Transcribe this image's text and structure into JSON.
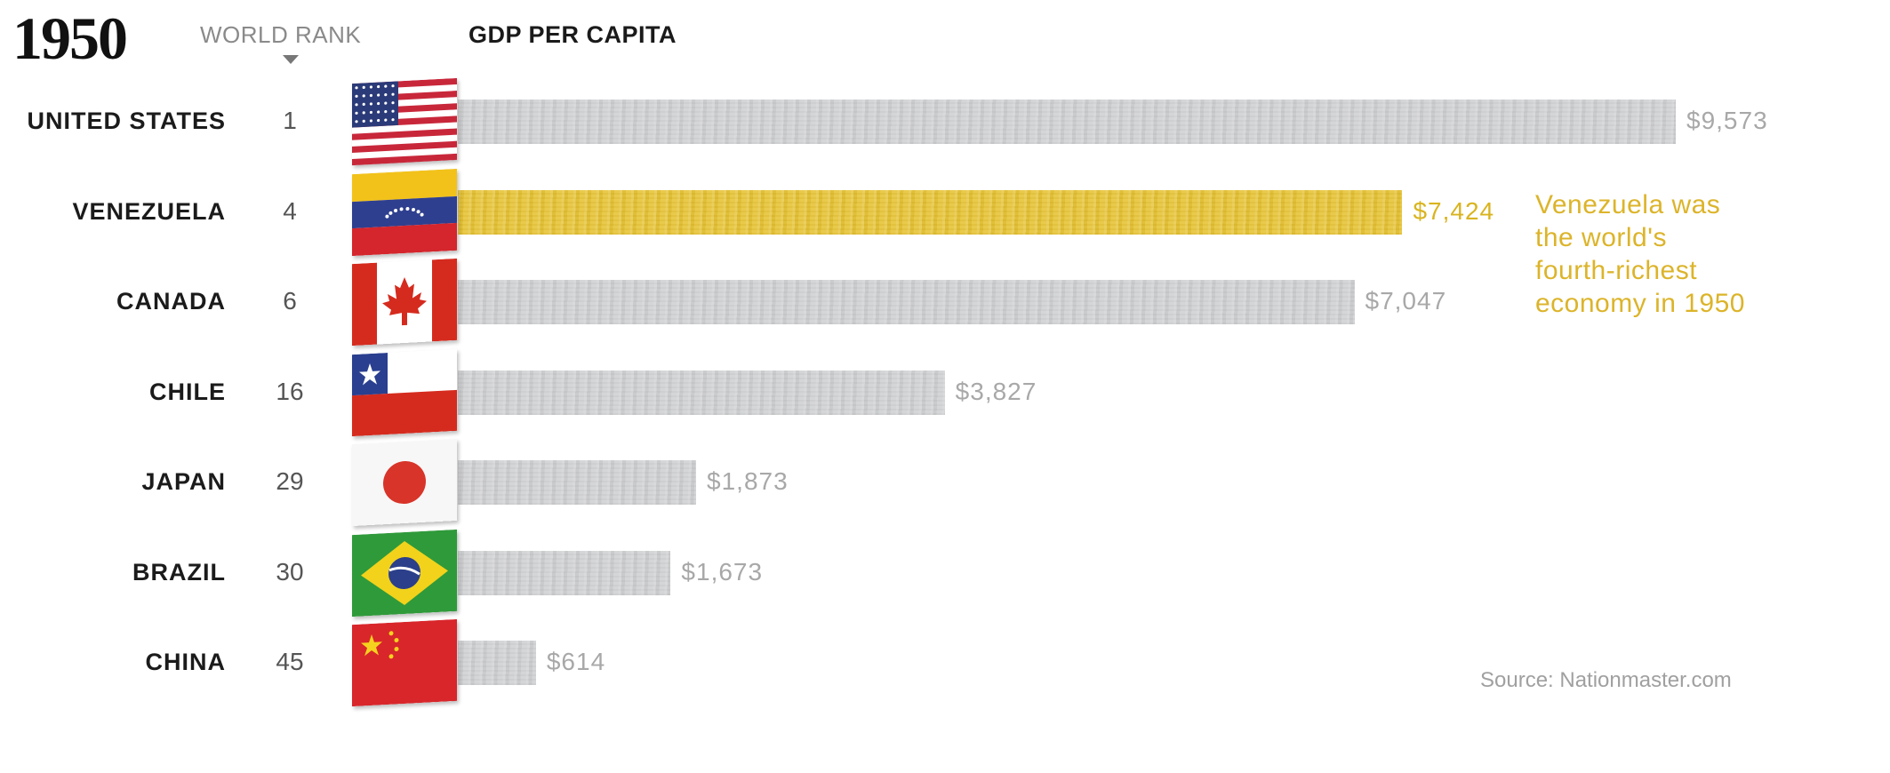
{
  "chart_data": {
    "type": "bar",
    "orientation": "horizontal",
    "title": "1950",
    "rank_header": "WORLD RANK",
    "value_header": "GDP PER CAPITA",
    "categories": [
      "UNITED STATES",
      "VENEZUELA",
      "CANADA",
      "CHILE",
      "JAPAN",
      "BRAZIL",
      "CHINA"
    ],
    "ranks": [
      "1",
      "4",
      "6",
      "16",
      "29",
      "30",
      "45"
    ],
    "values": [
      9573,
      7424,
      7047,
      3827,
      1873,
      1673,
      614
    ],
    "value_labels": [
      "$9,573",
      "$7,424",
      "$7,047",
      "$3,827",
      "$1,873",
      "$1,673",
      "$614"
    ],
    "highlight": "VENEZUELA",
    "annotation": [
      "Venezuela was",
      "the world's",
      "fourth-richest",
      "economy in 1950"
    ],
    "source": "Source: Nationmaster.com",
    "flags": [
      "us-flag-icon",
      "venezuela-flag-icon",
      "canada-flag-icon",
      "chile-flag-icon",
      "japan-flag-icon",
      "brazil-flag-icon",
      "china-flag-icon"
    ],
    "colors": {
      "bar": "#cfd0d2",
      "highlight": "#e6c232",
      "highlight_text": "#d9b41f",
      "value_text": "#a8a8a8"
    }
  }
}
